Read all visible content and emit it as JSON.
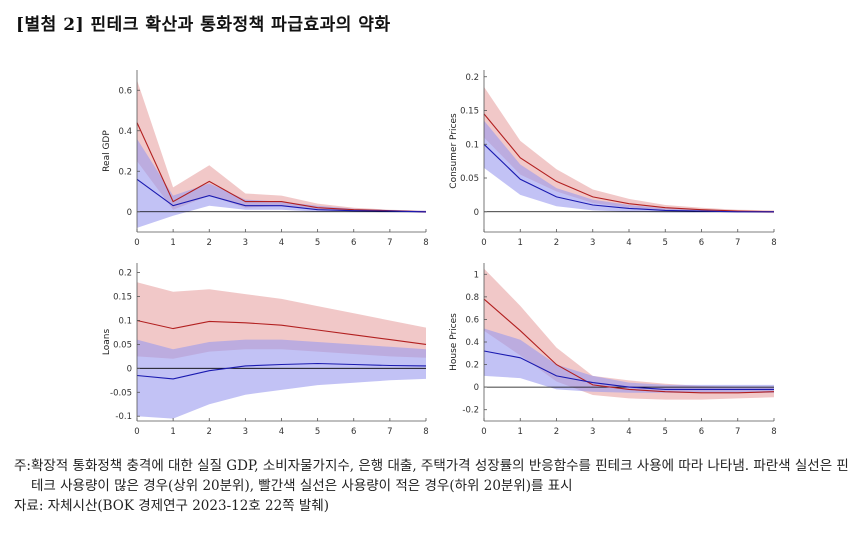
{
  "title": "[별첨 2] 핀테크 확산과 통화정책 파급효과의 약화",
  "colors": {
    "red": "#b22020",
    "red_band": "#e8a3a3",
    "blue": "#1a1ab0",
    "blue_band": "#9a9aef",
    "zero_line": "#000000"
  },
  "chart_data": [
    {
      "type": "line",
      "ylabel": "Real GDP",
      "x": [
        0,
        1,
        2,
        3,
        4,
        5,
        6,
        7,
        8
      ],
      "ylim": [
        -0.1,
        0.7
      ],
      "yticks": [
        0,
        0.2,
        0.4,
        0.6
      ],
      "ytick_labels": [
        "0",
        "0.2",
        "0.4",
        "0.6"
      ],
      "series": [
        {
          "color": "red",
          "values": [
            0.44,
            0.05,
            0.15,
            0.05,
            0.05,
            0.02,
            0.01,
            0.005,
            0.0
          ],
          "lower": [
            0.25,
            0.01,
            0.08,
            0.02,
            0.03,
            0.01,
            0.005,
            0.0,
            -0.005
          ],
          "upper": [
            0.65,
            0.12,
            0.23,
            0.09,
            0.08,
            0.04,
            0.02,
            0.01,
            0.005
          ]
        },
        {
          "color": "blue",
          "values": [
            0.16,
            0.03,
            0.08,
            0.03,
            0.03,
            0.01,
            0.005,
            0.003,
            0.0
          ],
          "lower": [
            -0.08,
            -0.02,
            0.03,
            0.01,
            0.01,
            0.0,
            0.0,
            -0.002,
            -0.005
          ],
          "upper": [
            0.36,
            0.08,
            0.14,
            0.06,
            0.05,
            0.03,
            0.015,
            0.008,
            0.005
          ]
        }
      ]
    },
    {
      "type": "line",
      "ylabel": "Consumer Prices",
      "x": [
        0,
        1,
        2,
        3,
        4,
        5,
        6,
        7,
        8
      ],
      "ylim": [
        -0.03,
        0.21
      ],
      "yticks": [
        0,
        0.05,
        0.1,
        0.15,
        0.2
      ],
      "ytick_labels": [
        "0",
        "0.05",
        "0.1",
        "0.15",
        "0.2"
      ],
      "series": [
        {
          "color": "red",
          "values": [
            0.145,
            0.08,
            0.045,
            0.022,
            0.012,
            0.006,
            0.003,
            0.001,
            0.0
          ],
          "lower": [
            0.11,
            0.055,
            0.03,
            0.013,
            0.006,
            0.002,
            0.0,
            -0.001,
            -0.002
          ],
          "upper": [
            0.185,
            0.105,
            0.063,
            0.033,
            0.019,
            0.01,
            0.006,
            0.003,
            0.002
          ]
        },
        {
          "color": "blue",
          "values": [
            0.1,
            0.048,
            0.022,
            0.01,
            0.005,
            0.002,
            0.001,
            0.0,
            0.0
          ],
          "lower": [
            0.065,
            0.025,
            0.008,
            0.002,
            0.0,
            -0.001,
            -0.001,
            -0.001,
            -0.001
          ],
          "upper": [
            0.135,
            0.07,
            0.035,
            0.018,
            0.01,
            0.005,
            0.003,
            0.001,
            0.001
          ]
        }
      ]
    },
    {
      "type": "line",
      "ylabel": "Loans",
      "x": [
        0,
        1,
        2,
        3,
        4,
        5,
        6,
        7,
        8
      ],
      "ylim": [
        -0.11,
        0.22
      ],
      "yticks": [
        -0.1,
        -0.05,
        0,
        0.05,
        0.1,
        0.15,
        0.2
      ],
      "ytick_labels": [
        "-0.1",
        "-0.05",
        "0",
        "0.05",
        "0.1",
        "0.15",
        "0.2"
      ],
      "series": [
        {
          "color": "red",
          "values": [
            0.1,
            0.083,
            0.098,
            0.095,
            0.09,
            0.08,
            0.07,
            0.06,
            0.05
          ],
          "lower": [
            0.025,
            0.02,
            0.035,
            0.04,
            0.04,
            0.035,
            0.03,
            0.025,
            0.022
          ],
          "upper": [
            0.18,
            0.16,
            0.165,
            0.155,
            0.145,
            0.13,
            0.115,
            0.1,
            0.085
          ]
        },
        {
          "color": "blue",
          "values": [
            -0.015,
            -0.022,
            -0.005,
            0.005,
            0.008,
            0.01,
            0.008,
            0.006,
            0.005
          ],
          "lower": [
            -0.1,
            -0.105,
            -0.075,
            -0.055,
            -0.045,
            -0.035,
            -0.03,
            -0.025,
            -0.022
          ],
          "upper": [
            0.06,
            0.04,
            0.055,
            0.06,
            0.06,
            0.055,
            0.05,
            0.045,
            0.04
          ]
        }
      ]
    },
    {
      "type": "line",
      "ylabel": "House Prices",
      "x": [
        0,
        1,
        2,
        3,
        4,
        5,
        6,
        7,
        8
      ],
      "ylim": [
        -0.3,
        1.1
      ],
      "yticks": [
        -0.2,
        0,
        0.2,
        0.4,
        0.6,
        0.8,
        1
      ],
      "ytick_labels": [
        "-0.2",
        "0",
        "0.2",
        "0.4",
        "0.6",
        "0.8",
        "1"
      ],
      "series": [
        {
          "color": "red",
          "values": [
            0.78,
            0.5,
            0.2,
            0.02,
            -0.02,
            -0.04,
            -0.05,
            -0.05,
            -0.04
          ],
          "lower": [
            0.5,
            0.28,
            0.05,
            -0.07,
            -0.1,
            -0.11,
            -0.11,
            -0.1,
            -0.09
          ],
          "upper": [
            1.05,
            0.72,
            0.35,
            0.1,
            0.06,
            0.03,
            0.01,
            0.0,
            0.0
          ]
        },
        {
          "color": "blue",
          "values": [
            0.32,
            0.26,
            0.1,
            0.04,
            0.0,
            -0.02,
            -0.02,
            -0.02,
            -0.02
          ],
          "lower": [
            0.1,
            0.08,
            -0.02,
            -0.04,
            -0.05,
            -0.05,
            -0.05,
            -0.05,
            -0.05
          ],
          "upper": [
            0.52,
            0.42,
            0.2,
            0.1,
            0.04,
            0.02,
            0.02,
            0.02,
            0.02
          ]
        }
      ]
    }
  ],
  "notes": {
    "note_label": "주: ",
    "note_text": "확장적 통화정책 충격에 대한 실질 GDP, 소비자물가지수, 은행 대출, 주택가격 성장률의 반응함수를 핀테크 사용에 따라 나타냄. 파란색 실선은 핀테크 사용량이 많은 경우(상위 20분위), 빨간색 실선은 사용량이 적은 경우(하위 20분위)를 표시",
    "source": "자료: 자체시산(BOK 경제연구 2023-12호 22쪽 발췌)"
  }
}
